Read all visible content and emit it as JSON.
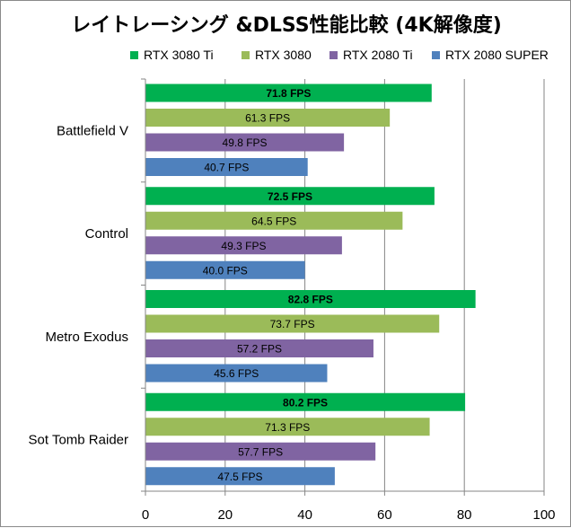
{
  "chart_data": {
    "type": "bar",
    "orientation": "horizontal",
    "title": "レイトレーシング &DLSS性能比較 (4K解像度)",
    "categories": [
      "Battlefield V",
      "Control",
      "Metro Exodus",
      "Sot Tomb Raider"
    ],
    "series": [
      {
        "name": "RTX 3080 Ti",
        "color": "#00b050",
        "values": [
          71.8,
          72.5,
          82.8,
          80.2
        ],
        "labels": [
          "71.8 FPS",
          "72.5 FPS",
          "82.8 FPS",
          "80.2 FPS"
        ],
        "label_bold": true
      },
      {
        "name": "RTX 3080",
        "color": "#9bbb59",
        "values": [
          61.3,
          64.5,
          73.7,
          71.3
        ],
        "labels": [
          "61.3 FPS",
          "64.5 FPS",
          "73.7 FPS",
          "71.3 FPS"
        ],
        "label_bold": false
      },
      {
        "name": "RTX 2080 Ti",
        "color": "#8064a2",
        "values": [
          49.8,
          49.3,
          57.2,
          57.7
        ],
        "labels": [
          "49.8 FPS",
          "49.3 FPS",
          "57.2 FPS",
          "57.7 FPS"
        ],
        "label_bold": false
      },
      {
        "name": "RTX 2080 SUPER",
        "color": "#4f81bd",
        "values": [
          40.7,
          40.0,
          45.6,
          47.5
        ],
        "labels": [
          "40.7 FPS",
          "40.0 FPS",
          "45.6 FPS",
          "47.5 FPS"
        ],
        "label_bold": false
      }
    ],
    "xlim": [
      0,
      100
    ],
    "xticks": [
      0,
      20,
      40,
      60,
      80,
      100
    ],
    "xtick_labels": [
      "0",
      "20",
      "40",
      "60",
      "80",
      "100"
    ],
    "grid": true,
    "legend_position": "top-right"
  }
}
